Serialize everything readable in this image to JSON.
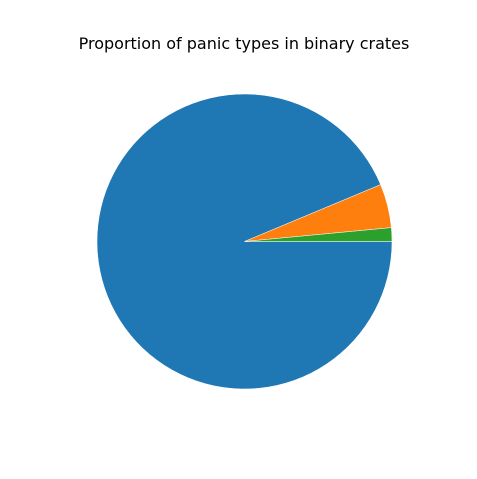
{
  "chart_data": {
    "type": "pie",
    "title": "Proportion of panic types in binary crates",
    "values": [
      93.7,
      4.8,
      1.5
    ],
    "colors": [
      "#1f77b4",
      "#ff7f0e",
      "#2ca02c"
    ],
    "start_angle_deg": 0,
    "direction": "clockwise",
    "legend": "none"
  }
}
